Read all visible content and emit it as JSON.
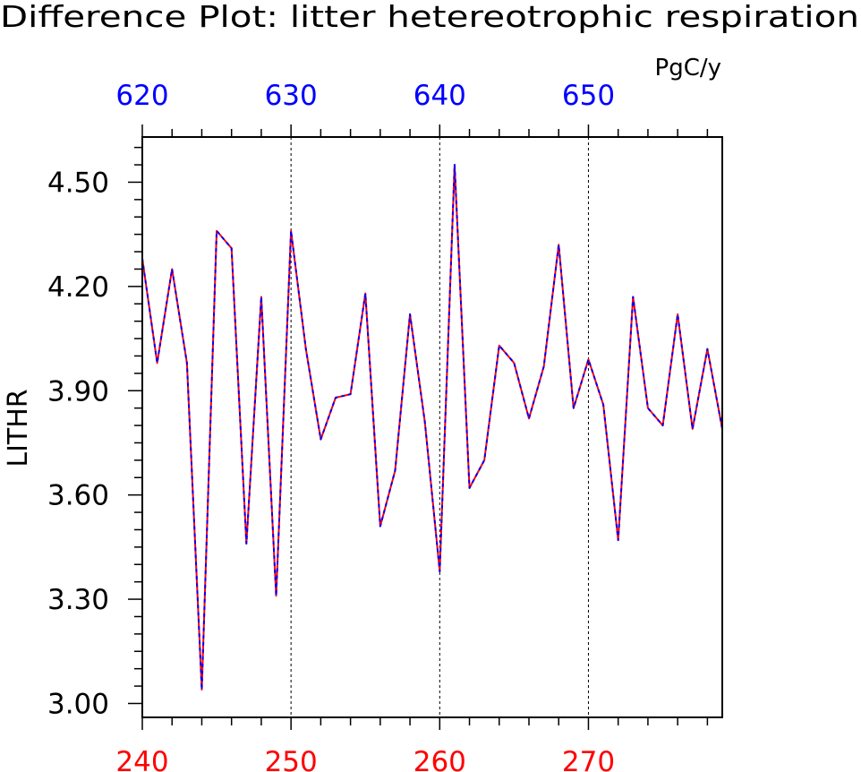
{
  "chart_data": {
    "type": "line",
    "title": "Difference Plot: litter hetereotrophic respiration",
    "units": "PgC/y",
    "ylabel": "LITHR",
    "xlabel": "",
    "x": [
      240,
      241,
      242,
      243,
      244,
      245,
      246,
      247,
      248,
      249,
      250,
      251,
      252,
      253,
      254,
      255,
      256,
      257,
      258,
      259,
      260,
      261,
      262,
      263,
      264,
      265,
      266,
      267,
      268,
      269,
      270,
      271,
      272,
      273,
      274,
      275,
      276,
      277,
      278,
      279
    ],
    "xlim": [
      240,
      279
    ],
    "ylim": [
      2.96,
      4.63
    ],
    "yticks": [
      3.0,
      3.3,
      3.6,
      3.9,
      4.2,
      4.5
    ],
    "ytick_labels": [
      "3.00",
      "3.30",
      "3.60",
      "3.90",
      "4.20",
      "4.50"
    ],
    "xticks_bottom": [
      240,
      250,
      260,
      270
    ],
    "xtick_labels_bottom": [
      "240",
      "250",
      "260",
      "270"
    ],
    "xticks_top": [
      240,
      250,
      260,
      270
    ],
    "xtick_labels_top": [
      "620",
      "630",
      "640",
      "650"
    ],
    "grid": "vertical dashed at labeled x ticks",
    "series": [
      {
        "color": "#ff0000",
        "style": "solid",
        "values": [
          4.28,
          3.98,
          4.25,
          3.98,
          3.04,
          4.36,
          4.31,
          3.46,
          4.17,
          3.31,
          4.36,
          4.02,
          3.76,
          3.88,
          3.89,
          4.18,
          3.51,
          3.67,
          4.12,
          3.81,
          3.38,
          4.55,
          3.62,
          3.7,
          4.03,
          3.98,
          3.82,
          3.97,
          4.32,
          3.85,
          3.99,
          3.86,
          3.47,
          4.17,
          3.85,
          3.8,
          4.12,
          3.79,
          4.02,
          3.79
        ]
      },
      {
        "color": "#0000ff",
        "style": "dashed",
        "values": [
          4.28,
          3.98,
          4.25,
          3.98,
          3.04,
          4.36,
          4.31,
          3.46,
          4.17,
          3.31,
          4.36,
          4.02,
          3.76,
          3.88,
          3.89,
          4.18,
          3.51,
          3.67,
          4.12,
          3.81,
          3.38,
          4.55,
          3.62,
          3.7,
          4.03,
          3.98,
          3.82,
          3.97,
          4.32,
          3.85,
          3.99,
          3.86,
          3.47,
          4.17,
          3.85,
          3.8,
          4.12,
          3.79,
          4.02,
          3.79
        ]
      }
    ],
    "colors": {
      "bottom_axis_labels": "#ff0000",
      "top_axis_labels": "#0000ff",
      "frame": "#000000",
      "text": "#000000"
    }
  }
}
